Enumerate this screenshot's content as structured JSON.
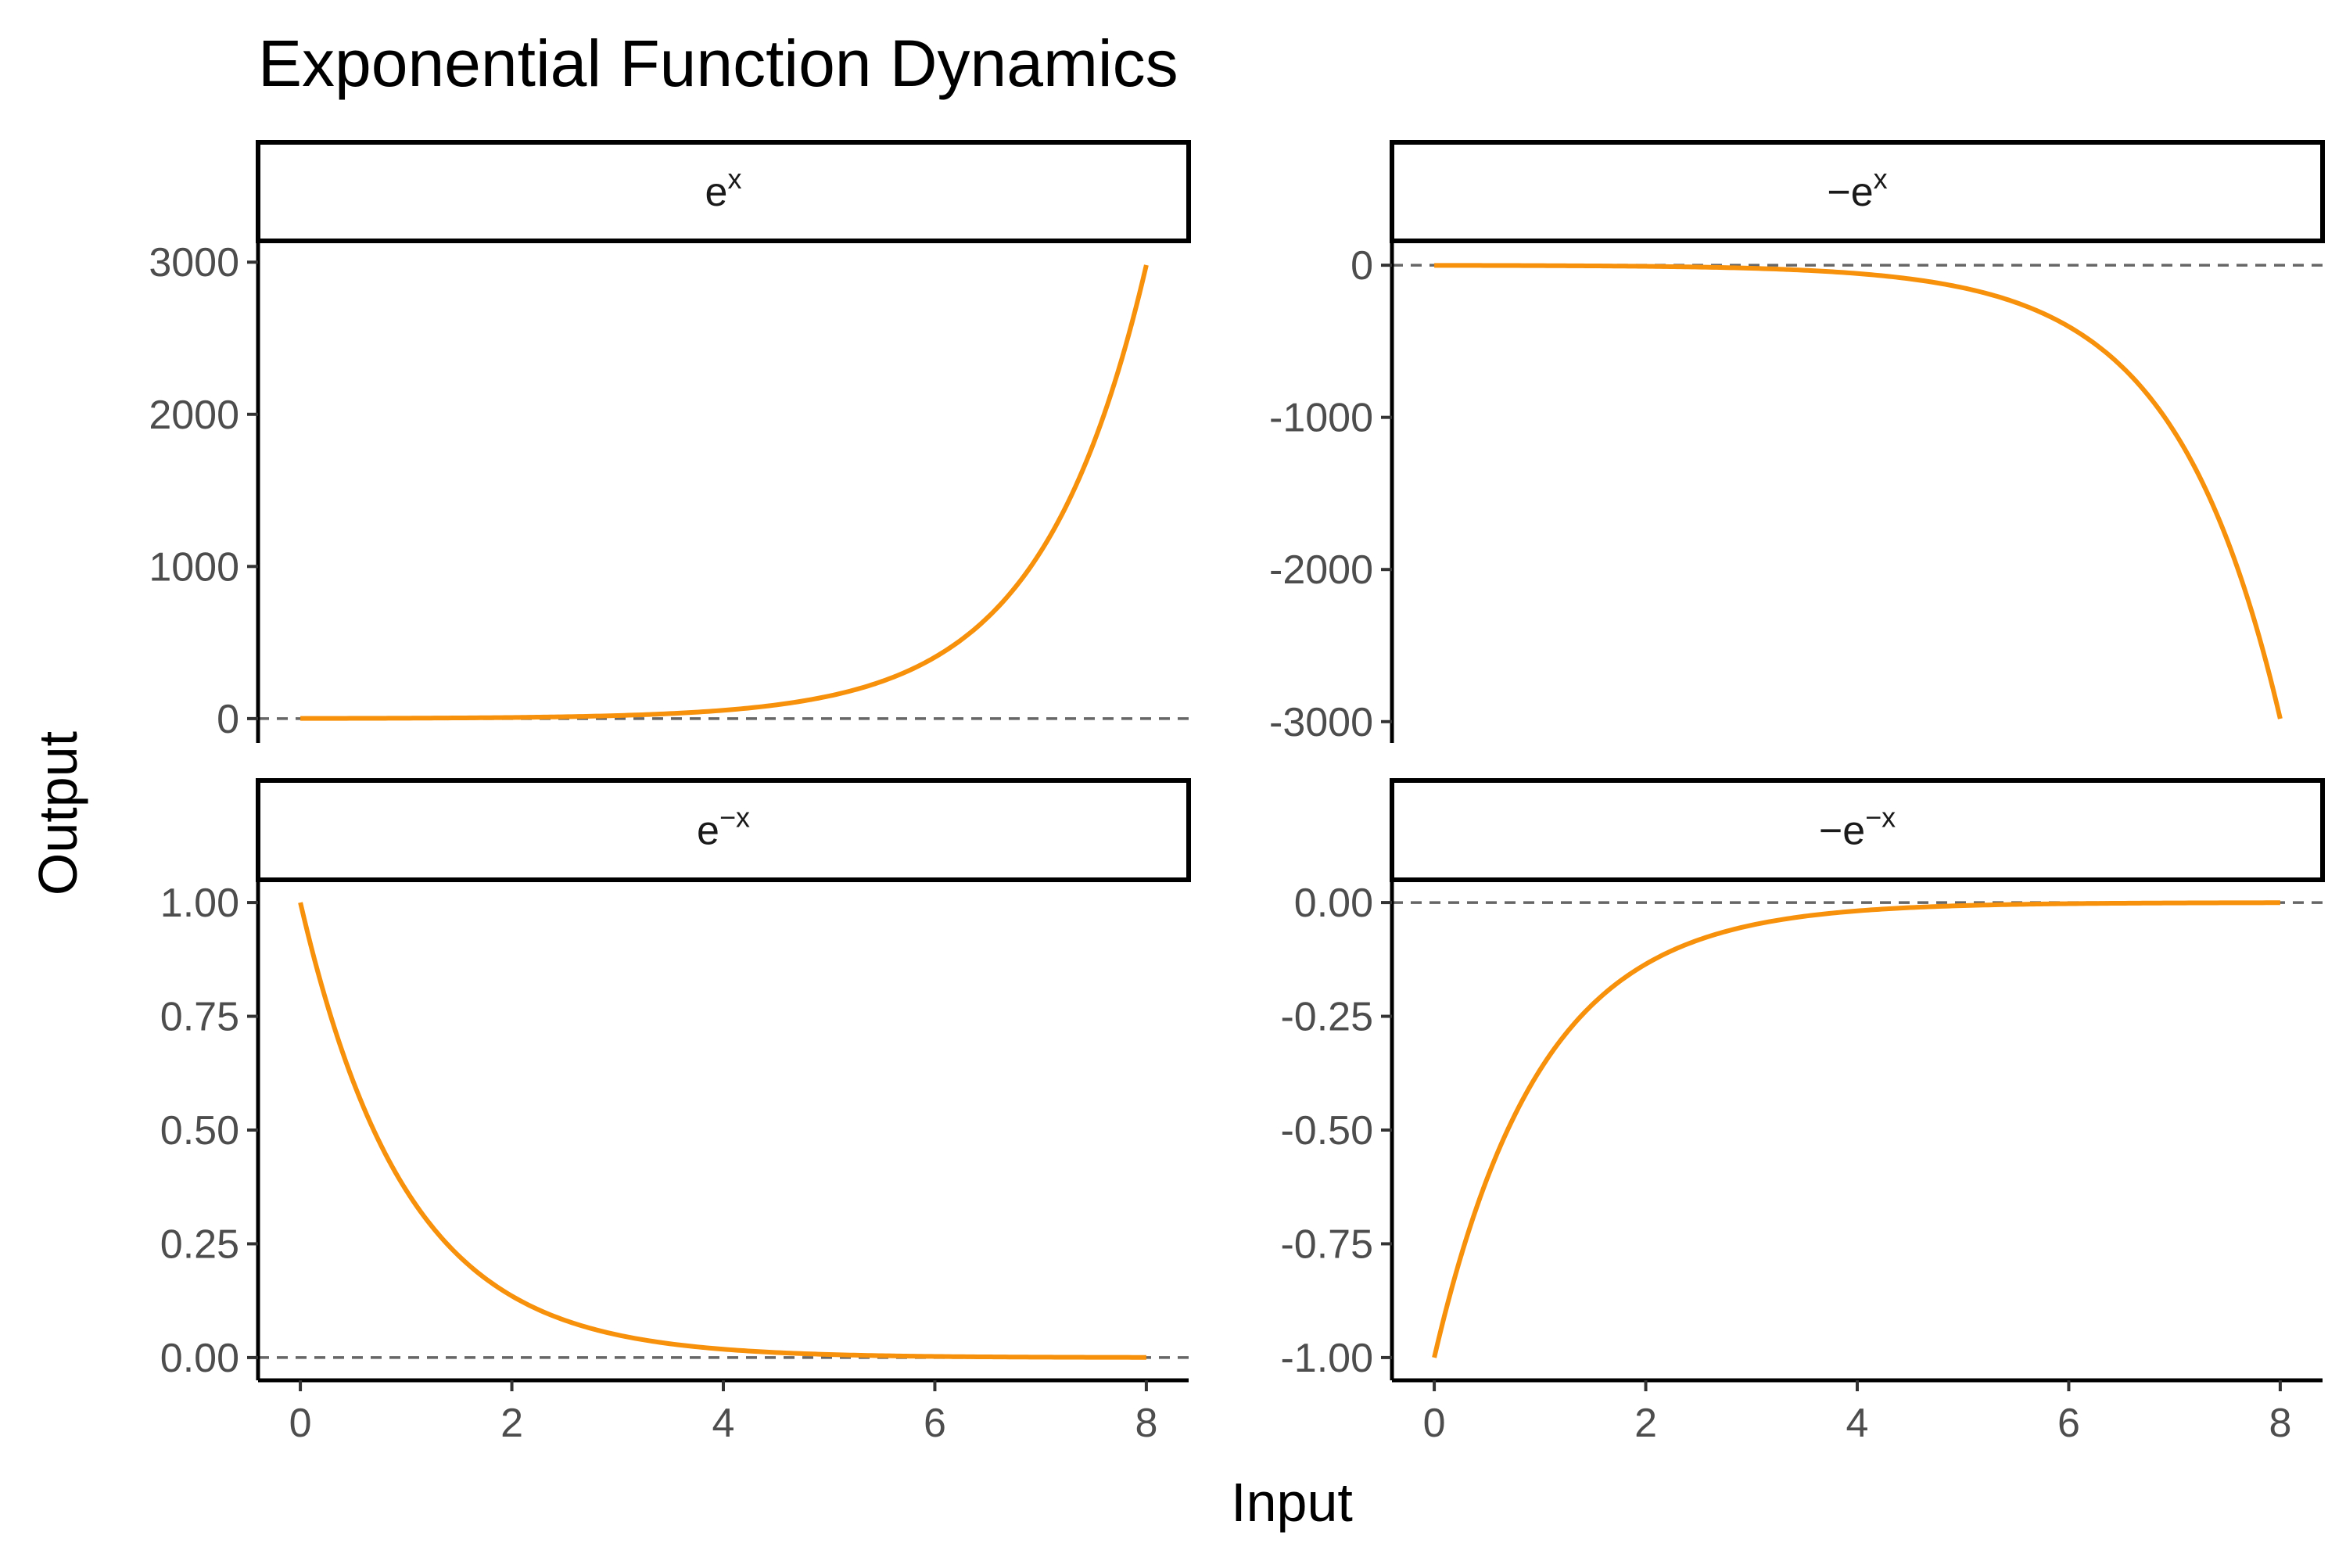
{
  "chart_data": {
    "type": "line",
    "title": "Exponential Function Dynamics",
    "xlabel": "Input",
    "ylabel": "Output",
    "line_color": "#F7900A",
    "reference_line": {
      "y": 0,
      "style": "dashed",
      "color": "#666666"
    },
    "grid": false,
    "panels": [
      {
        "id": "exp_pos",
        "strip": {
          "prefix": "",
          "base": "e",
          "sup": "x"
        },
        "function": "exp",
        "x_range": [
          0,
          8
        ],
        "xlim": [
          -0.4,
          8.4
        ],
        "ylim": [
          -160,
          3140
        ],
        "y_ticks": [
          0,
          1000,
          2000,
          3000
        ],
        "y_tick_labels": [
          "0",
          "1000",
          "2000",
          "3000"
        ],
        "show_x_axis": false,
        "x_values": [
          0,
          1,
          2,
          3,
          4,
          5,
          6,
          7,
          8
        ],
        "y_values": [
          1,
          2.72,
          7.39,
          20.09,
          54.6,
          148.41,
          403.43,
          1096.63,
          2980.96
        ]
      },
      {
        "id": "exp_neg",
        "strip": {
          "prefix": "−",
          "base": "e",
          "sup": "x"
        },
        "function": "neg_exp",
        "x_range": [
          0,
          8
        ],
        "xlim": [
          -0.4,
          8.4
        ],
        "ylim": [
          -3140,
          160
        ],
        "y_ticks": [
          -3000,
          -2000,
          -1000,
          0
        ],
        "y_tick_labels": [
          "-3000",
          "-2000",
          "-1000",
          "0"
        ],
        "show_x_axis": false,
        "x_values": [
          0,
          1,
          2,
          3,
          4,
          5,
          6,
          7,
          8
        ],
        "y_values": [
          -1,
          -2.72,
          -7.39,
          -20.09,
          -54.6,
          -148.41,
          -403.43,
          -1096.63,
          -2980.96
        ]
      },
      {
        "id": "decay_pos",
        "strip": {
          "prefix": "",
          "base": "e",
          "sup": "−x"
        },
        "function": "exp_neg_x",
        "x_range": [
          0,
          8
        ],
        "xlim": [
          -0.4,
          8.4
        ],
        "ylim": [
          -0.05,
          1.05
        ],
        "y_ticks": [
          0,
          0.25,
          0.5,
          0.75,
          1
        ],
        "y_tick_labels": [
          "0.00",
          "0.25",
          "0.50",
          "0.75",
          "1.00"
        ],
        "show_x_axis": true,
        "x_ticks": [
          0,
          2,
          4,
          6,
          8
        ],
        "x_tick_labels": [
          "0",
          "2",
          "4",
          "6",
          "8"
        ],
        "x_values": [
          0,
          1,
          2,
          3,
          4,
          5,
          6,
          7,
          8
        ],
        "y_values": [
          1,
          0.368,
          0.135,
          0.05,
          0.018,
          0.007,
          0.002,
          0.001,
          0.0003
        ]
      },
      {
        "id": "decay_neg",
        "strip": {
          "prefix": "−",
          "base": "e",
          "sup": "−x"
        },
        "function": "neg_exp_neg_x",
        "x_range": [
          0,
          8
        ],
        "xlim": [
          -0.4,
          8.4
        ],
        "ylim": [
          -1.05,
          0.05
        ],
        "y_ticks": [
          -1,
          -0.75,
          -0.5,
          -0.25,
          0
        ],
        "y_tick_labels": [
          "-1.00",
          "-0.75",
          "-0.50",
          "-0.25",
          "0.00"
        ],
        "show_x_axis": true,
        "x_ticks": [
          0,
          2,
          4,
          6,
          8
        ],
        "x_tick_labels": [
          "0",
          "2",
          "4",
          "6",
          "8"
        ],
        "x_values": [
          0,
          1,
          2,
          3,
          4,
          5,
          6,
          7,
          8
        ],
        "y_values": [
          -1,
          -0.368,
          -0.135,
          -0.05,
          -0.018,
          -0.007,
          -0.002,
          -0.001,
          -0.0003
        ]
      }
    ]
  }
}
